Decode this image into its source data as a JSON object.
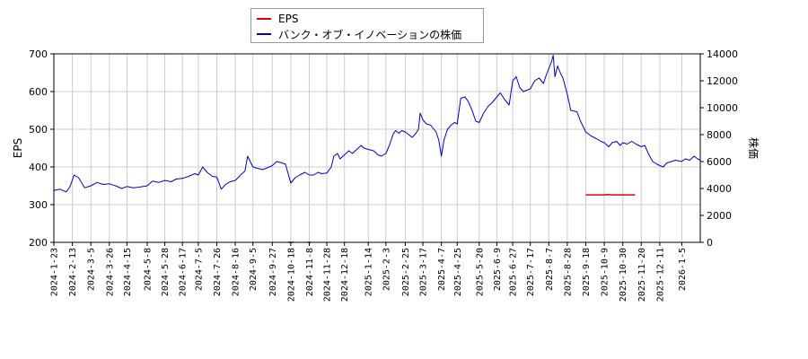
{
  "chart_data": {
    "type": "line",
    "title": "",
    "xlabel": "",
    "ylabel": "EPS",
    "y2label": "株価",
    "ylim": [
      200,
      700
    ],
    "y2lim": [
      0,
      14000
    ],
    "yticks": [
      200,
      300,
      400,
      500,
      600,
      700
    ],
    "y2ticks": [
      0,
      2000,
      4000,
      6000,
      8000,
      10000,
      12000,
      14000
    ],
    "grid": true,
    "legend_position": "top",
    "xlim": [
      "2024-01-23",
      "2026-01-26"
    ],
    "x_tick_labels": [
      "2024-1-23",
      "2024-2-13",
      "2024-3-5",
      "2024-3-26",
      "2024-4-15",
      "2024-5-8",
      "2024-5-28",
      "2024-6-17",
      "2024-7-5",
      "2024-7-26",
      "2024-8-16",
      "2024-9-5",
      "2024-9-27",
      "2024-10-18",
      "2024-11-8",
      "2024-11-28",
      "2024-12-18",
      "2025-1-14",
      "2025-2-3",
      "2025-2-25",
      "2025-3-17",
      "2025-4-7",
      "2025-4-25",
      "2025-5-20",
      "2025-6-9",
      "2025-6-27",
      "2025-7-17",
      "2025-8-7",
      "2025-8-28",
      "2025-9-18",
      "2025-10-9",
      "2025-10-30",
      "2025-11-20",
      "2025-12-11",
      "2026-1-5"
    ],
    "series": [
      {
        "name": "EPS",
        "color": "#dd0000",
        "axis": "left",
        "points": [
          [
            "2024-10-15",
            200
          ],
          [
            "2024-10-21",
            200
          ],
          [
            "2024-11-06",
            200
          ],
          [
            "2024-11-10",
            200
          ],
          [
            "2025-09-18",
            326
          ],
          [
            "2025-10-09",
            326
          ],
          [
            "2025-10-13",
            327
          ],
          [
            "2025-10-17",
            326
          ],
          [
            "2025-11-13",
            326
          ]
        ]
      },
      {
        "name": "バンク・オブ・イノベーションの株価",
        "color": "#0000cc",
        "axis": "right",
        "points": [
          [
            "2024-01-23",
            3850
          ],
          [
            "2024-01-30",
            3950
          ],
          [
            "2024-02-06",
            3750
          ],
          [
            "2024-02-10",
            4100
          ],
          [
            "2024-02-15",
            5000
          ],
          [
            "2024-02-20",
            4800
          ],
          [
            "2024-02-27",
            4050
          ],
          [
            "2024-03-05",
            4200
          ],
          [
            "2024-03-12",
            4450
          ],
          [
            "2024-03-19",
            4300
          ],
          [
            "2024-03-26",
            4350
          ],
          [
            "2024-04-02",
            4200
          ],
          [
            "2024-04-09",
            4000
          ],
          [
            "2024-04-15",
            4150
          ],
          [
            "2024-04-22",
            4050
          ],
          [
            "2024-04-29",
            4100
          ],
          [
            "2024-05-08",
            4200
          ],
          [
            "2024-05-14",
            4550
          ],
          [
            "2024-05-21",
            4450
          ],
          [
            "2024-05-28",
            4600
          ],
          [
            "2024-06-04",
            4500
          ],
          [
            "2024-06-10",
            4700
          ],
          [
            "2024-06-17",
            4750
          ],
          [
            "2024-06-24",
            4900
          ],
          [
            "2024-07-01",
            5100
          ],
          [
            "2024-07-05",
            5000
          ],
          [
            "2024-07-10",
            5600
          ],
          [
            "2024-07-15",
            5200
          ],
          [
            "2024-07-21",
            4900
          ],
          [
            "2024-07-26",
            4850
          ],
          [
            "2024-07-31",
            3950
          ],
          [
            "2024-08-05",
            4300
          ],
          [
            "2024-08-10",
            4500
          ],
          [
            "2024-08-16",
            4600
          ],
          [
            "2024-08-22",
            5000
          ],
          [
            "2024-08-27",
            5300
          ],
          [
            "2024-08-30",
            6400
          ],
          [
            "2024-09-05",
            5600
          ],
          [
            "2024-09-10",
            5500
          ],
          [
            "2024-09-16",
            5400
          ],
          [
            "2024-09-20",
            5500
          ],
          [
            "2024-09-27",
            5700
          ],
          [
            "2024-10-02",
            6000
          ],
          [
            "2024-10-08",
            5900
          ],
          [
            "2024-10-12",
            5800
          ],
          [
            "2024-10-18",
            4400
          ],
          [
            "2024-10-23",
            4800
          ],
          [
            "2024-10-28",
            5000
          ],
          [
            "2024-11-03",
            5200
          ],
          [
            "2024-11-08",
            5000
          ],
          [
            "2024-11-13",
            5000
          ],
          [
            "2024-11-18",
            5200
          ],
          [
            "2024-11-22",
            5100
          ],
          [
            "2024-11-28",
            5150
          ],
          [
            "2024-12-03",
            5600
          ],
          [
            "2024-12-06",
            6400
          ],
          [
            "2024-12-10",
            6600
          ],
          [
            "2024-12-13",
            6200
          ],
          [
            "2024-12-18",
            6500
          ],
          [
            "2024-12-23",
            6800
          ],
          [
            "2024-12-27",
            6600
          ],
          [
            "2025-01-06",
            7200
          ],
          [
            "2025-01-09",
            7000
          ],
          [
            "2025-01-14",
            6900
          ],
          [
            "2025-01-20",
            6800
          ],
          [
            "2025-01-25",
            6500
          ],
          [
            "2025-01-29",
            6400
          ],
          [
            "2025-02-03",
            6600
          ],
          [
            "2025-02-07",
            7200
          ],
          [
            "2025-02-11",
            8000
          ],
          [
            "2025-02-14",
            8300
          ],
          [
            "2025-02-18",
            8100
          ],
          [
            "2025-02-21",
            8300
          ],
          [
            "2025-02-25",
            8200
          ],
          [
            "2025-03-01",
            8000
          ],
          [
            "2025-03-05",
            7800
          ],
          [
            "2025-03-09",
            8100
          ],
          [
            "2025-03-12",
            8400
          ],
          [
            "2025-03-14",
            9600
          ],
          [
            "2025-03-17",
            9100
          ],
          [
            "2025-03-21",
            8800
          ],
          [
            "2025-03-26",
            8700
          ],
          [
            "2025-04-01",
            8200
          ],
          [
            "2025-04-04",
            7600
          ],
          [
            "2025-04-07",
            6400
          ],
          [
            "2025-04-10",
            7600
          ],
          [
            "2025-04-14",
            8400
          ],
          [
            "2025-04-18",
            8700
          ],
          [
            "2025-04-22",
            8900
          ],
          [
            "2025-04-25",
            8800
          ],
          [
            "2025-04-29",
            10700
          ],
          [
            "2025-05-04",
            10800
          ],
          [
            "2025-05-08",
            10400
          ],
          [
            "2025-05-12",
            9800
          ],
          [
            "2025-05-16",
            9000
          ],
          [
            "2025-05-20",
            8900
          ],
          [
            "2025-05-25",
            9600
          ],
          [
            "2025-05-30",
            10100
          ],
          [
            "2025-06-04",
            10400
          ],
          [
            "2025-06-09",
            10800
          ],
          [
            "2025-06-13",
            11100
          ],
          [
            "2025-06-18",
            10600
          ],
          [
            "2025-06-23",
            10200
          ],
          [
            "2025-06-27",
            12000
          ],
          [
            "2025-07-01",
            12300
          ],
          [
            "2025-07-05",
            11500
          ],
          [
            "2025-07-09",
            11200
          ],
          [
            "2025-07-13",
            11300
          ],
          [
            "2025-07-17",
            11400
          ],
          [
            "2025-07-22",
            12000
          ],
          [
            "2025-07-27",
            12200
          ],
          [
            "2025-08-01",
            11800
          ],
          [
            "2025-08-04",
            12400
          ],
          [
            "2025-08-07",
            12900
          ],
          [
            "2025-08-10",
            13400
          ],
          [
            "2025-08-12",
            13900
          ],
          [
            "2025-08-14",
            12300
          ],
          [
            "2025-08-17",
            13100
          ],
          [
            "2025-08-20",
            12600
          ],
          [
            "2025-08-23",
            12200
          ],
          [
            "2025-08-28",
            11000
          ],
          [
            "2025-09-01",
            9800
          ],
          [
            "2025-09-08",
            9700
          ],
          [
            "2025-09-12",
            9000
          ],
          [
            "2025-09-18",
            8200
          ],
          [
            "2025-09-24",
            7900
          ],
          [
            "2025-09-30",
            7700
          ],
          [
            "2025-10-05",
            7500
          ],
          [
            "2025-10-09",
            7400
          ],
          [
            "2025-10-14",
            7100
          ],
          [
            "2025-10-18",
            7400
          ],
          [
            "2025-10-23",
            7500
          ],
          [
            "2025-10-27",
            7200
          ],
          [
            "2025-10-30",
            7400
          ],
          [
            "2025-11-04",
            7300
          ],
          [
            "2025-11-09",
            7500
          ],
          [
            "2025-11-14",
            7300
          ],
          [
            "2025-11-20",
            7100
          ],
          [
            "2025-11-24",
            7200
          ],
          [
            "2025-11-28",
            6600
          ],
          [
            "2025-12-03",
            6000
          ],
          [
            "2025-12-08",
            5800
          ],
          [
            "2025-12-11",
            5700
          ],
          [
            "2025-12-15",
            5600
          ],
          [
            "2025-12-19",
            5900
          ],
          [
            "2025-12-24",
            6000
          ],
          [
            "2025-12-29",
            6100
          ],
          [
            "2026-01-05",
            6000
          ],
          [
            "2026-01-09",
            6200
          ],
          [
            "2026-01-14",
            6100
          ],
          [
            "2026-01-19",
            6400
          ],
          [
            "2026-01-23",
            6200
          ],
          [
            "2026-01-26",
            6100
          ]
        ]
      }
    ]
  }
}
